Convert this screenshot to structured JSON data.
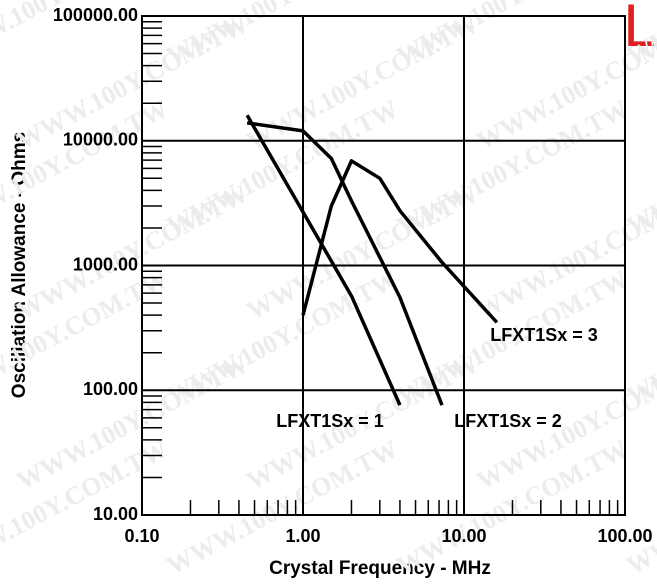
{
  "chart_data": {
    "type": "line",
    "xlabel": "Crystal Frequency - MHz",
    "ylabel": "Oscillation Allowance - Ohms",
    "watermark": "WWW.100Y.COM.TW",
    "corner_mark": "L",
    "xscale": "log",
    "yscale": "log",
    "xlim": [
      0.1,
      100
    ],
    "ylim": [
      10,
      100000
    ],
    "xticks": [
      {
        "value": 0.1,
        "label": "0.10"
      },
      {
        "value": 1,
        "label": "1.00"
      },
      {
        "value": 10,
        "label": "10.00"
      },
      {
        "value": 100,
        "label": "100.00"
      }
    ],
    "yticks": [
      {
        "value": 10,
        "label": "10.00"
      },
      {
        "value": 100,
        "label": "100.00"
      },
      {
        "value": 1000,
        "label": "1000.00"
      },
      {
        "value": 10000,
        "label": "10000.00"
      },
      {
        "value": 100000,
        "label": "100000.00"
      }
    ],
    "grid": true,
    "series": [
      {
        "name": "LFXT1Sx = 1",
        "color": "#000000",
        "x": [
          0.45,
          2,
          4
        ],
        "values": [
          16000,
          570,
          76
        ]
      },
      {
        "name": "LFXT1Sx = 2",
        "color": "#000000",
        "x": [
          0.45,
          1,
          1.5,
          2,
          4,
          7.3
        ],
        "values": [
          13900,
          12000,
          7200,
          3300,
          555,
          76
        ]
      },
      {
        "name": "LFXT1Sx = 3",
        "color": "#000000",
        "x": [
          1,
          1.5,
          2,
          3,
          4,
          7.3,
          16
        ],
        "values": [
          400,
          3000,
          6900,
          5000,
          2750,
          1060,
          350
        ]
      }
    ]
  }
}
